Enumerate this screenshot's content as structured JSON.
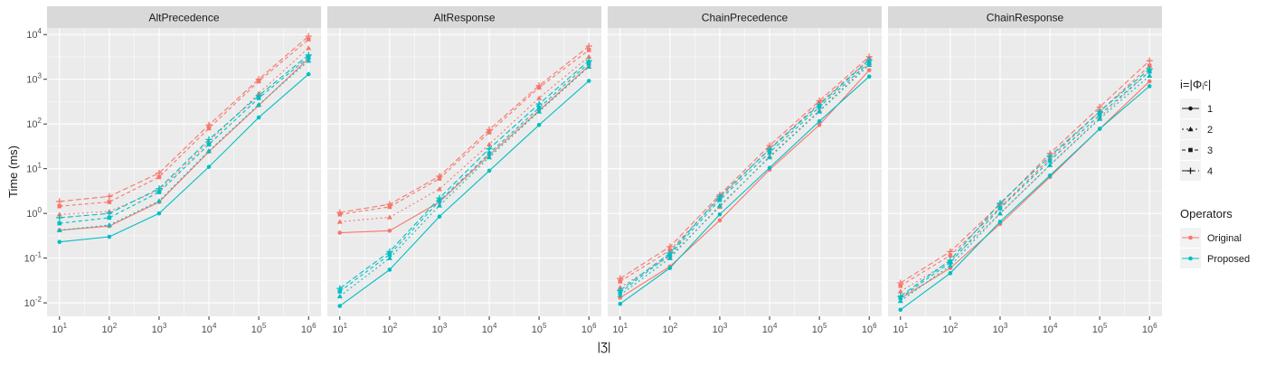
{
  "chart_data": {
    "type": "line",
    "ylabel": "Time (ms)",
    "xlabel": "|Ʒ|",
    "x": [
      10,
      100,
      1000,
      10000,
      100000,
      1000000
    ],
    "x_tick_labels": [
      {
        "base": "10",
        "exp": "1"
      },
      {
        "base": "10",
        "exp": "2"
      },
      {
        "base": "10",
        "exp": "3"
      },
      {
        "base": "10",
        "exp": "4"
      },
      {
        "base": "10",
        "exp": "5"
      },
      {
        "base": "10",
        "exp": "6"
      }
    ],
    "y_tick_labels": [
      {
        "base": "10",
        "exp": "-2"
      },
      {
        "base": "10",
        "exp": "-1"
      },
      {
        "base": "10",
        "exp": "0"
      },
      {
        "base": "10",
        "exp": "1"
      },
      {
        "base": "10",
        "exp": "2"
      },
      {
        "base": "10",
        "exp": "3"
      },
      {
        "base": "10",
        "exp": "4"
      }
    ],
    "x_scale": "log10",
    "y_scale": "log10",
    "ylim": [
      0.005,
      14000
    ],
    "grid": true,
    "legend_position": "right",
    "legends": {
      "shape": {
        "title": "i=|Φᵢᶜ|",
        "entries": [
          "1",
          "2",
          "3",
          "4"
        ]
      },
      "color": {
        "title": "Operators",
        "entries": [
          "Original",
          "Proposed"
        ]
      }
    },
    "colors": {
      "Original": "#F8766D",
      "Proposed": "#00BFC4"
    },
    "facets": [
      {
        "title": "AltPrecedence",
        "series": [
          {
            "operator": "Original",
            "i": "1",
            "values": [
              0.42,
              0.52,
              1.8,
              24,
              260,
              2900
            ]
          },
          {
            "operator": "Original",
            "i": "2",
            "values": [
              0.95,
              1.1,
              3.3,
              40,
              480,
              5000
            ]
          },
          {
            "operator": "Original",
            "i": "3",
            "values": [
              1.45,
              1.8,
              6.5,
              80,
              900,
              7800
            ]
          },
          {
            "operator": "Original",
            "i": "4",
            "values": [
              1.85,
              2.4,
              8.0,
              95,
              1000,
              9200
            ]
          },
          {
            "operator": "Proposed",
            "i": "1",
            "values": [
              0.23,
              0.3,
              1.0,
              11,
              140,
              1300
            ]
          },
          {
            "operator": "Proposed",
            "i": "2",
            "values": [
              0.42,
              0.55,
              1.9,
              25,
              270,
              2600
            ]
          },
          {
            "operator": "Proposed",
            "i": "3",
            "values": [
              0.6,
              0.8,
              3.0,
              35,
              380,
              3100
            ]
          },
          {
            "operator": "Proposed",
            "i": "4",
            "values": [
              0.8,
              1.0,
              3.6,
              45,
              430,
              3500
            ]
          }
        ]
      },
      {
        "title": "AltResponse",
        "series": [
          {
            "operator": "Original",
            "i": "1",
            "values": [
              0.37,
              0.41,
              1.8,
              20,
              200,
              2000
            ]
          },
          {
            "operator": "Original",
            "i": "2",
            "values": [
              0.65,
              0.82,
              3.5,
              35,
              380,
              3200
            ]
          },
          {
            "operator": "Original",
            "i": "3",
            "values": [
              0.95,
              1.4,
              6.0,
              65,
              650,
              4500
            ]
          },
          {
            "operator": "Original",
            "i": "4",
            "values": [
              1.05,
              1.6,
              6.8,
              75,
              720,
              5500
            ]
          },
          {
            "operator": "Proposed",
            "i": "1",
            "values": [
              0.0085,
              0.055,
              0.85,
              9,
              95,
              920
            ]
          },
          {
            "operator": "Proposed",
            "i": "2",
            "values": [
              0.014,
              0.1,
              1.5,
              18,
              190,
              1900
            ]
          },
          {
            "operator": "Proposed",
            "i": "3",
            "values": [
              0.018,
              0.12,
              1.9,
              22,
              230,
              2300
            ]
          },
          {
            "operator": "Proposed",
            "i": "4",
            "values": [
              0.021,
              0.14,
              2.2,
              28,
              280,
              2600
            ]
          }
        ]
      },
      {
        "title": "ChainPrecedence",
        "series": [
          {
            "operator": "Original",
            "i": "1",
            "values": [
              0.013,
              0.065,
              0.7,
              9.5,
              95,
              1600
            ]
          },
          {
            "operator": "Original",
            "i": "2",
            "values": [
              0.022,
              0.11,
              1.4,
              19,
              200,
              2300
            ]
          },
          {
            "operator": "Original",
            "i": "3",
            "values": [
              0.03,
              0.15,
              2.2,
              28,
              290,
              2800
            ]
          },
          {
            "operator": "Original",
            "i": "4",
            "values": [
              0.035,
              0.18,
              2.6,
              33,
              330,
              3200
            ]
          },
          {
            "operator": "Proposed",
            "i": "1",
            "values": [
              0.0095,
              0.06,
              0.95,
              10.5,
              115,
              1150
            ]
          },
          {
            "operator": "Proposed",
            "i": "2",
            "values": [
              0.015,
              0.1,
              1.5,
              18,
              190,
              2100
            ]
          },
          {
            "operator": "Proposed",
            "i": "3",
            "values": [
              0.017,
              0.12,
              2.0,
              23,
              240,
              2400
            ]
          },
          {
            "operator": "Proposed",
            "i": "4",
            "values": [
              0.019,
              0.13,
              2.4,
              27,
              270,
              2700
            ]
          }
        ]
      },
      {
        "title": "ChainResponse",
        "series": [
          {
            "operator": "Original",
            "i": "1",
            "values": [
              0.0125,
              0.06,
              0.58,
              6.5,
              78,
              900
            ]
          },
          {
            "operator": "Original",
            "i": "2",
            "values": [
              0.018,
              0.085,
              1.0,
              12,
              140,
              1500
            ]
          },
          {
            "operator": "Original",
            "i": "3",
            "values": [
              0.024,
              0.115,
              1.35,
              17,
              190,
              2000
            ]
          },
          {
            "operator": "Original",
            "i": "4",
            "values": [
              0.028,
              0.14,
              1.6,
              22,
              240,
              2600
            ]
          },
          {
            "operator": "Proposed",
            "i": "1",
            "values": [
              0.007,
              0.046,
              0.65,
              7,
              78,
              700
            ]
          },
          {
            "operator": "Proposed",
            "i": "2",
            "values": [
              0.011,
              0.068,
              1.0,
              12,
              130,
              1200
            ]
          },
          {
            "operator": "Proposed",
            "i": "3",
            "values": [
              0.013,
              0.08,
              1.3,
              15,
              160,
              1500
            ]
          },
          {
            "operator": "Proposed",
            "i": "4",
            "values": [
              0.014,
              0.09,
              1.7,
              19,
              190,
              1700
            ]
          }
        ]
      }
    ]
  }
}
